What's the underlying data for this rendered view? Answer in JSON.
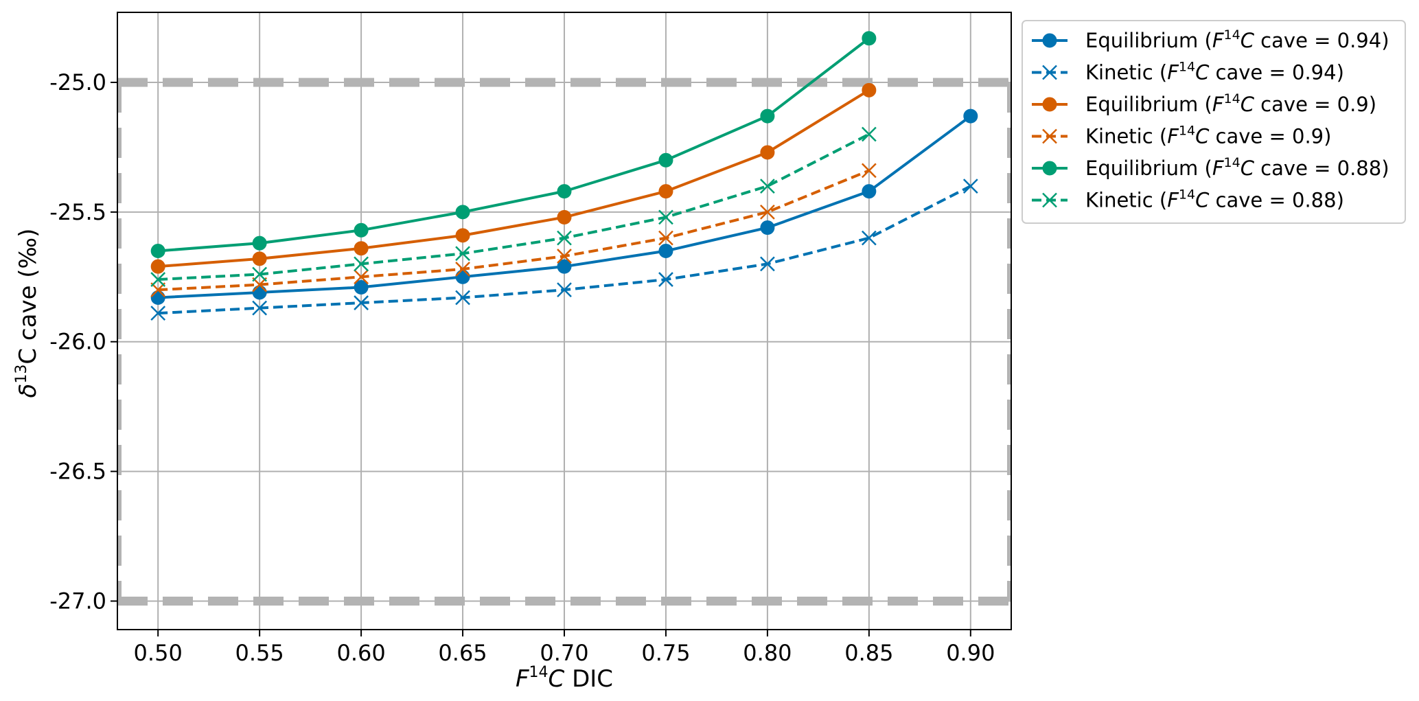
{
  "chart_data": {
    "type": "line",
    "title": "",
    "xlabel_var": "F",
    "xlabel_sup": "14",
    "xlabel_var2": "C",
    "xlabel_rest": " DIC",
    "ylabel_pre": "δ",
    "ylabel_sup": "13",
    "ylabel_rest": "C cave (‰)",
    "xlim": [
      0.48,
      0.92
    ],
    "ylim": [
      -27.11,
      -24.73
    ],
    "x_ticks": [
      "0.50",
      "0.55",
      "0.60",
      "0.65",
      "0.70",
      "0.75",
      "0.80",
      "0.85",
      "0.90"
    ],
    "y_ticks": [
      "-25.0",
      "-25.5",
      "-26.0",
      "-26.5",
      "-27.0"
    ],
    "grid": true,
    "legend_position": "outside-top-right",
    "reference_box": {
      "x": [
        0.48,
        0.92
      ],
      "y": [
        -27.0,
        -25.0
      ],
      "color": "#b3b3b3",
      "style": "dashed"
    },
    "series": [
      {
        "name": "Equilibrium (F14C cave = 0.94)",
        "legend_prefix": "Equilibrium (",
        "legend_var": "F",
        "legend_sup": "14",
        "legend_var2": "C",
        "legend_suffix": " cave = 0.94)",
        "kind": "equilibrium",
        "color": "#0072b2",
        "marker": "circle",
        "line": "solid",
        "x": [
          0.5,
          0.55,
          0.6,
          0.65,
          0.7,
          0.75,
          0.8,
          0.85,
          0.9
        ],
        "y": [
          -25.83,
          -25.81,
          -25.79,
          -25.75,
          -25.71,
          -25.65,
          -25.56,
          -25.42,
          -25.13
        ]
      },
      {
        "name": "Kinetic (F14C cave = 0.94)",
        "legend_prefix": "Kinetic (",
        "legend_var": "F",
        "legend_sup": "14",
        "legend_var2": "C",
        "legend_suffix": " cave = 0.94)",
        "kind": "kinetic",
        "color": "#0072b2",
        "marker": "x",
        "line": "dashed",
        "x": [
          0.5,
          0.55,
          0.6,
          0.65,
          0.7,
          0.75,
          0.8,
          0.85,
          0.9
        ],
        "y": [
          -25.89,
          -25.87,
          -25.85,
          -25.83,
          -25.8,
          -25.76,
          -25.7,
          -25.6,
          -25.4
        ]
      },
      {
        "name": "Equilibrium (F14C cave = 0.9)",
        "legend_prefix": "Equilibrium (",
        "legend_var": "F",
        "legend_sup": "14",
        "legend_var2": "C",
        "legend_suffix": " cave = 0.9)",
        "kind": "equilibrium",
        "color": "#d55e00",
        "marker": "circle",
        "line": "solid",
        "x": [
          0.5,
          0.55,
          0.6,
          0.65,
          0.7,
          0.75,
          0.8,
          0.85
        ],
        "y": [
          -25.71,
          -25.68,
          -25.64,
          -25.59,
          -25.52,
          -25.42,
          -25.27,
          -25.03
        ]
      },
      {
        "name": "Kinetic (F14C cave = 0.9)",
        "legend_prefix": "Kinetic (",
        "legend_var": "F",
        "legend_sup": "14",
        "legend_var2": "C",
        "legend_suffix": " cave = 0.9)",
        "kind": "kinetic",
        "color": "#d55e00",
        "marker": "x",
        "line": "dashed",
        "x": [
          0.5,
          0.55,
          0.6,
          0.65,
          0.7,
          0.75,
          0.8,
          0.85
        ],
        "y": [
          -25.8,
          -25.78,
          -25.75,
          -25.72,
          -25.67,
          -25.6,
          -25.5,
          -25.34
        ]
      },
      {
        "name": "Equilibrium (F14C cave = 0.88)",
        "legend_prefix": "Equilibrium (",
        "legend_var": "F",
        "legend_sup": "14",
        "legend_var2": "C",
        "legend_suffix": " cave = 0.88)",
        "kind": "equilibrium",
        "color": "#009e73",
        "marker": "circle",
        "line": "solid",
        "x": [
          0.5,
          0.55,
          0.6,
          0.65,
          0.7,
          0.75,
          0.8,
          0.85
        ],
        "y": [
          -25.65,
          -25.62,
          -25.57,
          -25.5,
          -25.42,
          -25.3,
          -25.13,
          -24.83
        ]
      },
      {
        "name": "Kinetic (F14C cave = 0.88)",
        "legend_prefix": "Kinetic (",
        "legend_var": "F",
        "legend_sup": "14",
        "legend_var2": "C",
        "legend_suffix": " cave = 0.88)",
        "kind": "kinetic",
        "color": "#009e73",
        "marker": "x",
        "line": "dashed",
        "x": [
          0.5,
          0.55,
          0.6,
          0.65,
          0.7,
          0.75,
          0.8,
          0.85
        ],
        "y": [
          -25.76,
          -25.74,
          -25.7,
          -25.66,
          -25.6,
          -25.52,
          -25.4,
          -25.2
        ]
      }
    ]
  }
}
